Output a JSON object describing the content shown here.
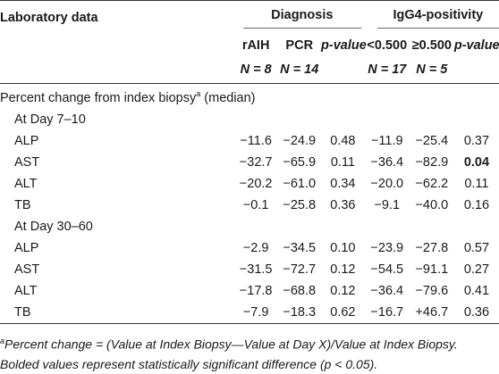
{
  "header": {
    "col_lab": "Laboratory data",
    "grp_diag": "Diagnosis",
    "grp_igg4": "IgG4-positivity",
    "sub": [
      "rAIH",
      "PCR",
      "p-value",
      "<0.500",
      "≥0.500",
      "p-value"
    ],
    "n": [
      "N = 8",
      "N = 14",
      "",
      "N = 17",
      "N = 5",
      ""
    ]
  },
  "section_title": "Percent change from index biopsy",
  "section_title_sup": "a",
  "section_title_suffix": "(median)",
  "groups": [
    {
      "label": "At Day 7–10",
      "rows": [
        {
          "name": "ALP",
          "vals": [
            "−11.6",
            "−24.9",
            "0.48",
            "−11.9",
            "−25.4",
            "0.37"
          ]
        },
        {
          "name": "AST",
          "vals": [
            "−32.7",
            "−65.9",
            "0.11",
            "−36.4",
            "−82.9",
            "0.04"
          ]
        },
        {
          "name": "ALT",
          "vals": [
            "−20.2",
            "−61.0",
            "0.34",
            "−20.0",
            "−62.2",
            "0.11"
          ]
        },
        {
          "name": "TB",
          "vals": [
            "−0.1",
            "−25.8",
            "0.36",
            "−9.1",
            "−40.0",
            "0.16"
          ]
        }
      ]
    },
    {
      "label": "At Day 30–60",
      "rows": [
        {
          "name": "ALP",
          "vals": [
            "−2.9",
            "−34.5",
            "0.10",
            "−23.9",
            "−27.8",
            "0.57"
          ]
        },
        {
          "name": "AST",
          "vals": [
            "−31.5",
            "−72.7",
            "0.12",
            "−54.5",
            "−91.1",
            "0.27"
          ]
        },
        {
          "name": "ALT",
          "vals": [
            "−17.8",
            "−68.8",
            "0.12",
            "−36.4",
            "−79.6",
            "0.41"
          ]
        },
        {
          "name": "TB",
          "vals": [
            "−7.9",
            "−18.3",
            "0.62",
            "−16.7",
            "+46.7",
            "0.36"
          ]
        }
      ]
    }
  ],
  "footnote": {
    "sup": "a",
    "line1": "Percent change = (Value at Index Biopsy—Value at Day X)/Value at Index Biopsy.",
    "line2": "Bolded values represent statistically significant difference (p < 0.05)."
  }
}
